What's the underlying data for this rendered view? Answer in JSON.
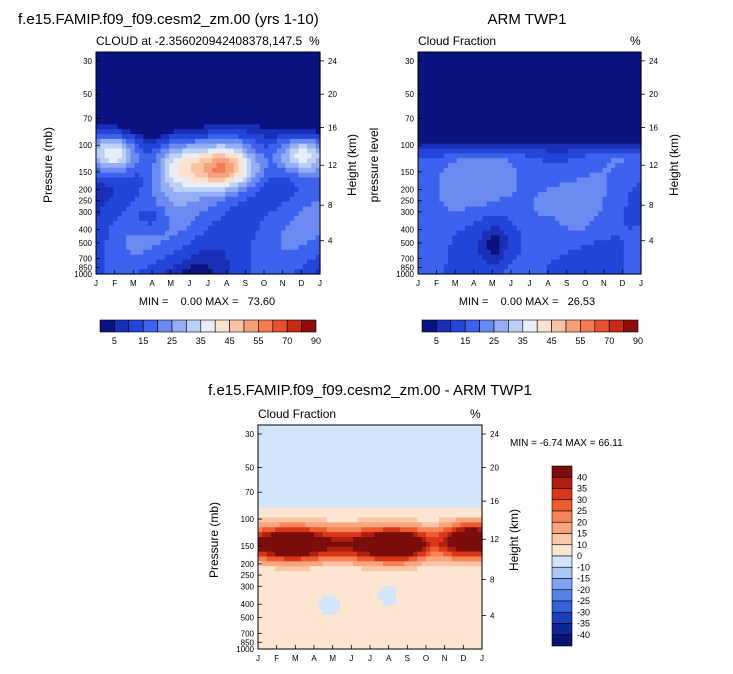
{
  "chart_data": [
    {
      "type": "heatmap",
      "title": "f.e15.FAMIP.f09_f09.cesm2_zm.00 (yrs 1-10)",
      "left_label": "CLOUD at -2.356020942408378,147.5",
      "right_label": "%",
      "ylabel": "Pressure (mb)",
      "y2label": "Height (km)",
      "x_ticks": [
        "J",
        "F",
        "M",
        "A",
        "M",
        "J",
        "J",
        "A",
        "S",
        "O",
        "N",
        "D",
        "J"
      ],
      "y_ticks": [
        "30",
        "50",
        "70",
        "100",
        "150",
        "200",
        "250",
        "300",
        "400",
        "500",
        "700",
        "850",
        "1000"
      ],
      "y2_ticks": [
        "24",
        "20",
        "16",
        "12",
        "8",
        "4"
      ],
      "stats": "MIN =    0.00 MAX =   73.60",
      "min": 0.0,
      "max": 73.6
    },
    {
      "type": "heatmap",
      "title": "ARM TWP1",
      "left_label": "Cloud Fraction",
      "right_label": "%",
      "ylabel": "pressure level",
      "y2label": "Height (km)",
      "x_ticks": [
        "J",
        "F",
        "M",
        "A",
        "M",
        "J",
        "J",
        "A",
        "S",
        "O",
        "N",
        "D",
        "J"
      ],
      "y_ticks": [
        "30",
        "50",
        "70",
        "100",
        "150",
        "200",
        "250",
        "300",
        "400",
        "500",
        "700",
        "850",
        "1000"
      ],
      "y2_ticks": [
        "24",
        "20",
        "16",
        "12",
        "8",
        "4"
      ],
      "stats": "MIN =    0.00 MAX =   26.53",
      "min": 0.0,
      "max": 26.53
    },
    {
      "type": "heatmap",
      "title": "f.e15.FAMIP.f09_f09.cesm2_zm.00 - ARM TWP1",
      "left_label": "Cloud Fraction",
      "right_label": "%",
      "ylabel": "Pressure (mb)",
      "y2label": "Height (km)",
      "x_ticks": [
        "J",
        "F",
        "M",
        "A",
        "M",
        "J",
        "J",
        "A",
        "S",
        "O",
        "N",
        "D",
        "J"
      ],
      "y_ticks": [
        "30",
        "50",
        "70",
        "100",
        "150",
        "200",
        "250",
        "300",
        "400",
        "500",
        "700",
        "850",
        "1000"
      ],
      "y2_ticks": [
        "24",
        "20",
        "16",
        "12",
        "8",
        "4"
      ],
      "stats": "MIN = -6.74 MAX = 66.11",
      "min": -6.74,
      "max": 66.11
    }
  ],
  "colorbar_abs": {
    "labels": [
      "5",
      "15",
      "25",
      "35",
      "45",
      "55",
      "70",
      "90"
    ],
    "colors": [
      "#0b1380",
      "#1a2fb8",
      "#2345d8",
      "#3d62ee",
      "#6a8af2",
      "#94aef4",
      "#bdd0f6",
      "#e8eef8",
      "#fde3cf",
      "#fbc4a6",
      "#f7a17c",
      "#f27a55",
      "#e8502f",
      "#c92a17",
      "#8e0d0a"
    ]
  },
  "colorbar_diff": {
    "labels": [
      "40",
      "35",
      "30",
      "25",
      "20",
      "15",
      "10",
      "0",
      "-10",
      "-15",
      "-20",
      "-25",
      "-30",
      "-35",
      "-40"
    ],
    "colors": [
      "#7a0d0a",
      "#b01e10",
      "#d9361a",
      "#ef5b30",
      "#f68457",
      "#f9a67f",
      "#fbc6a7",
      "#fde6d1",
      "#d2e5fb",
      "#a9c6f4",
      "#7ea4ee",
      "#5683e6",
      "#3462d8",
      "#1c3eba",
      "#0f2596",
      "#0a1272"
    ]
  }
}
